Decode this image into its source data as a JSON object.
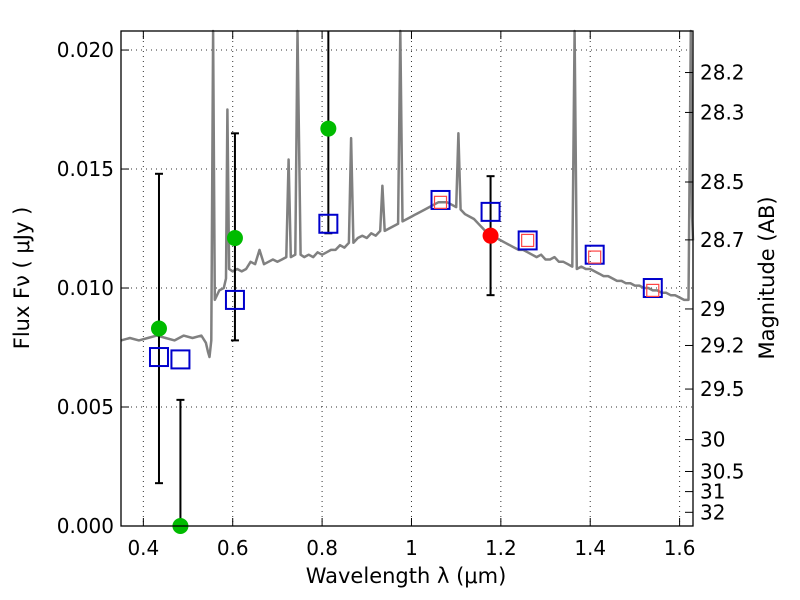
{
  "chart_data": {
    "type": "scatter",
    "xlabel": "Wavelength  λ (μm)",
    "ylabel": "Flux  Fν  ( μJy )",
    "ylabel_right": "Magnitude (AB)",
    "xlim": [
      0.35,
      1.63
    ],
    "ylim": [
      0.0,
      0.0208
    ],
    "grid": true,
    "x_ticks": [
      0.4,
      0.6,
      0.8,
      1.0,
      1.2,
      1.4,
      1.6
    ],
    "x_tick_labels": [
      "0.4",
      "0.6",
      "0.8",
      "1",
      "1.2",
      "1.4",
      "1.6"
    ],
    "y_ticks": [
      0.0,
      0.005,
      0.01,
      0.015,
      0.02
    ],
    "y_tick_labels": [
      "0.000",
      "0.005",
      "0.010",
      "0.015",
      "0.020"
    ],
    "right_ticks": [
      {
        "mag": 28.2,
        "label": "28.2"
      },
      {
        "mag": 28.3,
        "label": "28.3"
      },
      {
        "mag": 28.5,
        "label": "28.5"
      },
      {
        "mag": 28.7,
        "label": "28.7"
      },
      {
        "mag": 29.0,
        "label": "29"
      },
      {
        "mag": 29.2,
        "label": "29.2"
      },
      {
        "mag": 29.5,
        "label": "29.5"
      },
      {
        "mag": 30.0,
        "label": "30"
      },
      {
        "mag": 30.5,
        "label": "30.5"
      },
      {
        "mag": 31.0,
        "label": "31"
      },
      {
        "mag": 32.0,
        "label": "32"
      }
    ],
    "series": [
      {
        "name": "model spectrum",
        "kind": "line",
        "color": "#808080",
        "points": [
          [
            0.35,
            0.0078
          ],
          [
            0.37,
            0.0079
          ],
          [
            0.39,
            0.0078
          ],
          [
            0.41,
            0.0079
          ],
          [
            0.43,
            0.008
          ],
          [
            0.45,
            0.0079
          ],
          [
            0.47,
            0.0078
          ],
          [
            0.49,
            0.008
          ],
          [
            0.51,
            0.0079
          ],
          [
            0.53,
            0.008
          ],
          [
            0.54,
            0.0077
          ],
          [
            0.545,
            0.0073
          ],
          [
            0.548,
            0.0071
          ],
          [
            0.552,
            0.0078
          ],
          [
            0.556,
            0.0208
          ],
          [
            0.56,
            0.0095
          ],
          [
            0.57,
            0.0099
          ],
          [
            0.58,
            0.01
          ],
          [
            0.585,
            0.0104
          ],
          [
            0.588,
            0.0175
          ],
          [
            0.592,
            0.0108
          ],
          [
            0.6,
            0.0107
          ],
          [
            0.61,
            0.0108
          ],
          [
            0.62,
            0.0107
          ],
          [
            0.63,
            0.0108
          ],
          [
            0.64,
            0.0111
          ],
          [
            0.65,
            0.011
          ],
          [
            0.66,
            0.0116
          ],
          [
            0.67,
            0.011
          ],
          [
            0.68,
            0.0111
          ],
          [
            0.69,
            0.0112
          ],
          [
            0.7,
            0.0111
          ],
          [
            0.71,
            0.0112
          ],
          [
            0.72,
            0.0113
          ],
          [
            0.725,
            0.0154
          ],
          [
            0.73,
            0.0113
          ],
          [
            0.74,
            0.0114
          ],
          [
            0.745,
            0.0208
          ],
          [
            0.752,
            0.0114
          ],
          [
            0.76,
            0.0113
          ],
          [
            0.77,
            0.0114
          ],
          [
            0.78,
            0.0113
          ],
          [
            0.79,
            0.0115
          ],
          [
            0.8,
            0.0114
          ],
          [
            0.81,
            0.0115
          ],
          [
            0.82,
            0.0116
          ],
          [
            0.83,
            0.0116
          ],
          [
            0.84,
            0.0118
          ],
          [
            0.85,
            0.0117
          ],
          [
            0.86,
            0.0119
          ],
          [
            0.865,
            0.0163
          ],
          [
            0.87,
            0.0119
          ],
          [
            0.88,
            0.0121
          ],
          [
            0.89,
            0.0122
          ],
          [
            0.9,
            0.0121
          ],
          [
            0.91,
            0.0123
          ],
          [
            0.92,
            0.0122
          ],
          [
            0.93,
            0.0124
          ],
          [
            0.935,
            0.0143
          ],
          [
            0.94,
            0.0124
          ],
          [
            0.95,
            0.0125
          ],
          [
            0.96,
            0.0126
          ],
          [
            0.97,
            0.0127
          ],
          [
            0.975,
            0.0208
          ],
          [
            0.98,
            0.0128
          ],
          [
            0.99,
            0.0129
          ],
          [
            1.0,
            0.013
          ],
          [
            1.01,
            0.0131
          ],
          [
            1.02,
            0.0132
          ],
          [
            1.03,
            0.0133
          ],
          [
            1.04,
            0.0134
          ],
          [
            1.05,
            0.0135
          ],
          [
            1.06,
            0.0136
          ],
          [
            1.07,
            0.0136
          ],
          [
            1.08,
            0.0136
          ],
          [
            1.09,
            0.0135
          ],
          [
            1.1,
            0.0134
          ],
          [
            1.105,
            0.0165
          ],
          [
            1.11,
            0.0133
          ],
          [
            1.12,
            0.0131
          ],
          [
            1.13,
            0.013
          ],
          [
            1.14,
            0.0129
          ],
          [
            1.15,
            0.0127
          ],
          [
            1.16,
            0.0125
          ],
          [
            1.17,
            0.0123
          ],
          [
            1.18,
            0.0122
          ],
          [
            1.19,
            0.0121
          ],
          [
            1.2,
            0.012
          ],
          [
            1.21,
            0.0119
          ],
          [
            1.22,
            0.0118
          ],
          [
            1.23,
            0.0117
          ],
          [
            1.24,
            0.0116
          ],
          [
            1.25,
            0.0116
          ],
          [
            1.26,
            0.0115
          ],
          [
            1.27,
            0.0114
          ],
          [
            1.28,
            0.0113
          ],
          [
            1.29,
            0.0114
          ],
          [
            1.3,
            0.0112
          ],
          [
            1.31,
            0.0112
          ],
          [
            1.32,
            0.0113
          ],
          [
            1.33,
            0.0111
          ],
          [
            1.34,
            0.0111
          ],
          [
            1.35,
            0.011
          ],
          [
            1.36,
            0.0109
          ],
          [
            1.365,
            0.0208
          ],
          [
            1.37,
            0.0108
          ],
          [
            1.38,
            0.0109
          ],
          [
            1.39,
            0.0108
          ],
          [
            1.4,
            0.0108
          ],
          [
            1.41,
            0.0107
          ],
          [
            1.42,
            0.0106
          ],
          [
            1.43,
            0.0105
          ],
          [
            1.44,
            0.0105
          ],
          [
            1.45,
            0.0104
          ],
          [
            1.46,
            0.0103
          ],
          [
            1.47,
            0.0103
          ],
          [
            1.48,
            0.0102
          ],
          [
            1.49,
            0.0102
          ],
          [
            1.5,
            0.0101
          ],
          [
            1.51,
            0.0101
          ],
          [
            1.52,
            0.01
          ],
          [
            1.53,
            0.01
          ],
          [
            1.54,
            0.0099
          ],
          [
            1.55,
            0.0099
          ],
          [
            1.56,
            0.0098
          ],
          [
            1.57,
            0.0098
          ],
          [
            1.58,
            0.0097
          ],
          [
            1.59,
            0.0097
          ],
          [
            1.6,
            0.0096
          ],
          [
            1.61,
            0.0095
          ],
          [
            1.62,
            0.0095
          ],
          [
            1.625,
            0.0208
          ],
          [
            1.628,
            0.013
          ],
          [
            1.63,
            0.012
          ]
        ]
      },
      {
        "name": "observed photometry",
        "kind": "points",
        "marker": "circle",
        "color": "#00bb00",
        "points": [
          [
            0.435,
            0.0083
          ],
          [
            0.483,
            0.0
          ],
          [
            0.605,
            0.0121
          ],
          [
            0.814,
            0.0167
          ]
        ],
        "errors": [
          [
            0.0018,
            0.0148
          ],
          [
            0.0,
            0.0053
          ],
          [
            0.0078,
            0.0165
          ],
          [
            0.0123,
            0.0208
          ]
        ]
      },
      {
        "name": "observed photometry (highlight)",
        "kind": "points",
        "marker": "circle",
        "color": "#ff0000",
        "points": [
          [
            1.177,
            0.0122
          ]
        ],
        "errors": [
          [
            0.0097,
            0.0147
          ]
        ]
      },
      {
        "name": "model photometry",
        "kind": "points",
        "marker": "open-square",
        "color": "#0000cc",
        "points": [
          [
            0.435,
            0.0071
          ],
          [
            0.483,
            0.007
          ],
          [
            0.605,
            0.0095
          ],
          [
            0.814,
            0.0127
          ],
          [
            1.065,
            0.0137
          ],
          [
            1.177,
            0.0132
          ],
          [
            1.26,
            0.012
          ],
          [
            1.41,
            0.0114
          ],
          [
            1.54,
            0.01
          ]
        ]
      },
      {
        "name": "model photometry (red)",
        "kind": "points",
        "marker": "open-square",
        "color": "#ff4444",
        "points": [
          [
            1.065,
            0.0136
          ],
          [
            1.26,
            0.012
          ],
          [
            1.41,
            0.0113
          ],
          [
            1.54,
            0.0099
          ]
        ]
      }
    ]
  }
}
